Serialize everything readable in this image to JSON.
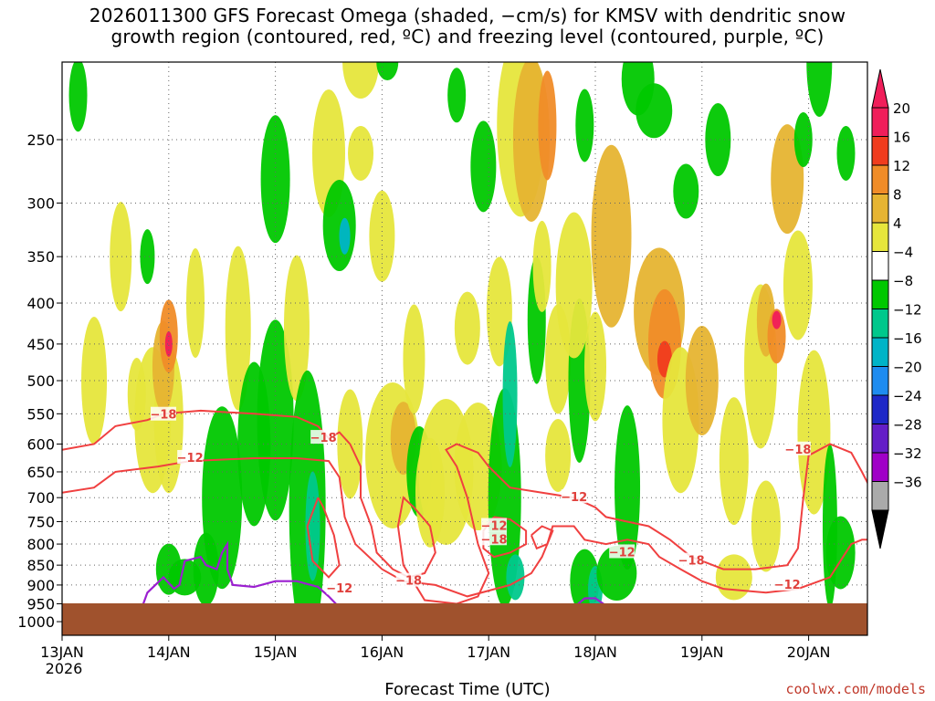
{
  "title": {
    "line1": "2026011300 GFS Forecast Omega (shaded, −cm/s) for KMSV with dendritic snow",
    "line2": "growth region (contoured, red, ºC) and freezing level (contoured, purple, ºC)"
  },
  "xlabel": "Forecast Time (UTC)",
  "credit": "coolwx.com/models",
  "colors": {
    "ground": "#a0522d",
    "temp_contour": "#f04040",
    "freezing_contour": "#9b1fd0",
    "grid": "#666666"
  },
  "chart_data": {
    "type": "heatmap",
    "x_ticks": [
      "13JAN",
      "14JAN",
      "15JAN",
      "16JAN",
      "17JAN",
      "18JAN",
      "19JAN",
      "20JAN"
    ],
    "x_year_label": "2026",
    "x_range_days": [
      0,
      7.6
    ],
    "y_ticks": [
      250,
      300,
      350,
      400,
      450,
      500,
      550,
      600,
      650,
      700,
      750,
      800,
      850,
      900,
      950,
      1000
    ],
    "y_range_hpa": [
      1040,
      200
    ],
    "y_scale": "log",
    "colorbar": {
      "labels": [
        "20",
        "16",
        "12",
        "8",
        "4",
        "−4",
        "−8",
        "−12",
        "−16",
        "−20",
        "−24",
        "−28",
        "−32",
        "−36"
      ],
      "colors": [
        "#f01e5a",
        "#f03c1e",
        "#f08c28",
        "#e6b432",
        "#e6e63c",
        "#ffffff",
        "#00c800",
        "#00c88c",
        "#00b4c8",
        "#1e8cf0",
        "#1e28c8",
        "#641ec8",
        "#a000c8",
        "#aaaaaa"
      ]
    },
    "contour_label_values": [
      "−18",
      "−12",
      "−18",
      "−12",
      "−18",
      "−12",
      "−18",
      "−12",
      "−12",
      "−18",
      "−18",
      "−12"
    ],
    "ground_top_hpa": 965
  }
}
